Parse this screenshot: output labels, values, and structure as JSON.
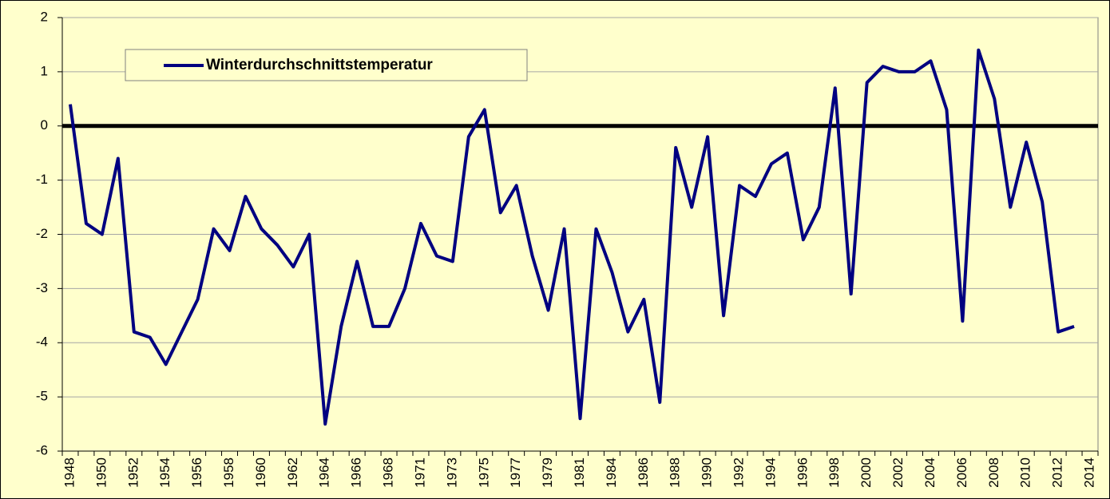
{
  "chart_data": {
    "type": "line",
    "categories": [
      "1948",
      null,
      "1950",
      null,
      "1952",
      null,
      "1954",
      null,
      "1956",
      null,
      "1958",
      null,
      "1960",
      null,
      "1962",
      null,
      "1964",
      null,
      "1966",
      null,
      "1968",
      null,
      "1971",
      null,
      "1973",
      null,
      "1975",
      null,
      "1977",
      null,
      "1979",
      null,
      "1981",
      null,
      "1984",
      null,
      "1986",
      null,
      "1988",
      null,
      "1990",
      null,
      "1992",
      null,
      "1994",
      null,
      "1996",
      null,
      "1998",
      null,
      "2000",
      null,
      "2002",
      null,
      "2004",
      null,
      "2006",
      null,
      "2008",
      null,
      "2010",
      null,
      "2012",
      null,
      "2014"
    ],
    "series": [
      {
        "name": "Winterdurchschnittstemperatur",
        "color": "#000080",
        "values": [
          0.4,
          -1.8,
          -2.0,
          -0.6,
          -3.8,
          -3.9,
          -4.4,
          -3.8,
          -3.2,
          -1.9,
          -2.3,
          -1.3,
          -1.9,
          -2.2,
          -2.6,
          -2.0,
          -5.5,
          -3.7,
          -2.5,
          -3.7,
          -3.7,
          -3.0,
          -1.8,
          -2.4,
          -2.5,
          -0.2,
          0.3,
          -1.6,
          -1.1,
          -2.4,
          -3.4,
          -1.9,
          -5.4,
          -1.9,
          -2.7,
          -3.8,
          -3.2,
          -5.1,
          -0.4,
          -1.5,
          -0.2,
          -3.5,
          -1.1,
          -1.3,
          -0.7,
          -0.5,
          -2.1,
          -1.5,
          0.7,
          -3.1,
          0.8,
          1.1,
          1.0,
          1.0,
          1.2,
          0.3,
          -3.6,
          1.4,
          0.5,
          -1.5,
          -0.3,
          -1.4,
          -3.8,
          -3.7,
          null
        ]
      }
    ],
    "ylim": [
      -6,
      2
    ],
    "yticks": [
      -6,
      -5,
      -4,
      -3,
      -2,
      -1,
      0,
      1,
      2
    ],
    "grid": true,
    "legend": "upper left"
  }
}
